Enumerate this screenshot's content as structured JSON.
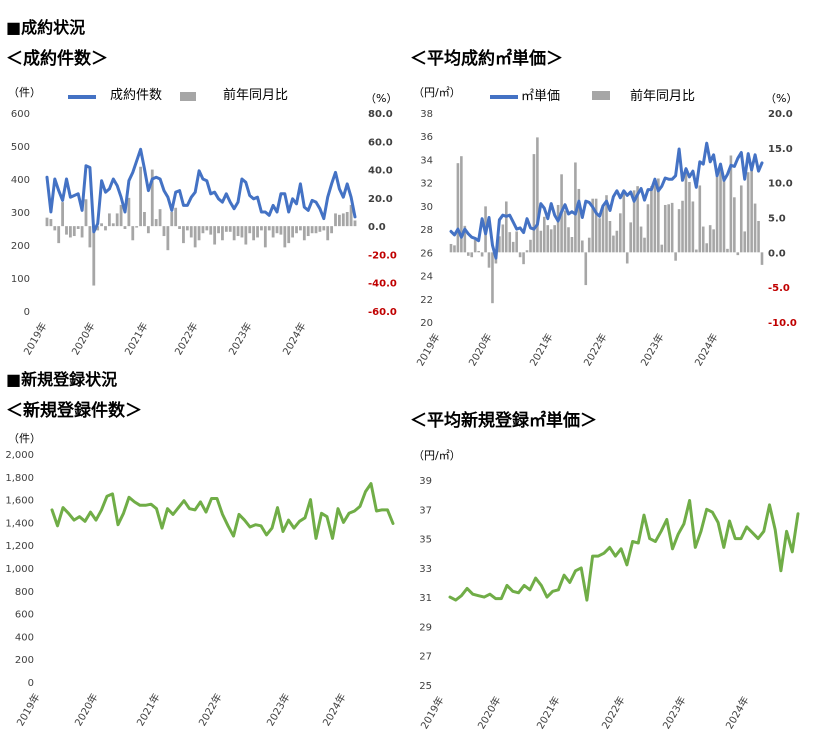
{
  "sections": {
    "contracts": "■成約状況",
    "listings": "■新規登録状況"
  },
  "chart_data": [
    {
      "id": "contract-count",
      "type": "bar+line",
      "title": "＜成約件数＞",
      "ylabel_left": "（件）",
      "ylabel_right": "（%）",
      "legend": [
        "成約件数",
        "前年同月比"
      ],
      "legend_placement": "top",
      "x_tick_labels": [
        "2019年",
        "2020年",
        "2021年",
        "2022年",
        "2023年",
        "2024年"
      ],
      "yticks_left": [
        "0",
        "100",
        "200",
        "300",
        "400",
        "500",
        "600"
      ],
      "yticks_right": [
        "-60.0",
        "-40.0",
        "-20.0",
        "0.0",
        "20.0",
        "40.0",
        "60.0",
        "80.0"
      ],
      "ylim_left": [
        0,
        600
      ],
      "ylim_right": [
        -60,
        80
      ],
      "line_color": "#4472C4",
      "bar_color": "#A6A6A6",
      "negative_tick_color": "#C00000",
      "line_series": {
        "name": "成約件数",
        "values": [
          405,
          300,
          400,
          365,
          335,
          400,
          345,
          350,
          355,
          305,
          440,
          435,
          240,
          265,
          395,
          360,
          370,
          400,
          380,
          345,
          300,
          395,
          420,
          455,
          490,
          430,
          365,
          400,
          405,
          400,
          365,
          345,
          305,
          360,
          365,
          320,
          320,
          345,
          360,
          425,
          400,
          395,
          355,
          360,
          340,
          330,
          355,
          330,
          310,
          330,
          400,
          390,
          350,
          340,
          345,
          300,
          300,
          290,
          320,
          300,
          355,
          355,
          300,
          340,
          325,
          385,
          315,
          305,
          335,
          330,
          310,
          280,
          345,
          385,
          420,
          370,
          345,
          385,
          345,
          285
        ]
      },
      "bar_series": {
        "name": "前年同月比",
        "values": [
          6,
          5,
          -3,
          -12,
          17,
          -6,
          -8,
          -7,
          -2,
          -8,
          19,
          -15,
          -42,
          -3,
          2,
          -3,
          9,
          2,
          9,
          15,
          -2,
          20,
          -10,
          -1,
          42,
          10,
          -5,
          40,
          5,
          12,
          -7,
          -17,
          10,
          13,
          -2,
          -12,
          -3,
          -8,
          -15,
          -10,
          -5,
          -3,
          -6,
          -13,
          -5,
          -10,
          -4,
          -4,
          -10,
          -7,
          -8,
          -13,
          -5,
          -10,
          -8,
          -3,
          -15,
          -3,
          -8,
          -5,
          -6,
          -15,
          -12,
          -8,
          -5,
          -3,
          -10,
          -7,
          -5,
          -5,
          -4,
          -3,
          -10,
          -5,
          9,
          8,
          9,
          10,
          15,
          4
        ]
      }
    },
    {
      "id": "contract-price",
      "type": "bar+line",
      "title": "＜平均成約㎡単価＞",
      "ylabel_left": "（円/㎡）",
      "ylabel_right": "（%）",
      "legend": [
        "㎡単価",
        "前年同月比"
      ],
      "legend_placement": "top",
      "x_tick_labels": [
        "2019年",
        "2020年",
        "2021年",
        "2022年",
        "2023年",
        "2024年"
      ],
      "yticks_left": [
        "20",
        "22",
        "24",
        "26",
        "28",
        "30",
        "32",
        "34",
        "36",
        "38"
      ],
      "yticks_right": [
        "-10.0",
        "-5.0",
        "0.0",
        "5.0",
        "10.0",
        "15.0",
        "20.0"
      ],
      "ylim_left": [
        20,
        38
      ],
      "ylim_right": [
        -10,
        20
      ],
      "line_color": "#4472C4",
      "bar_color": "#A6A6A6",
      "negative_tick_color": "#C00000",
      "line_series": {
        "name": "㎡単価",
        "values": [
          27.8,
          27.5,
          28.0,
          27.3,
          28.0,
          27.6,
          27.3,
          27.2,
          27.0,
          28.9,
          27.6,
          29.0,
          26.6,
          25.5,
          28.8,
          29.2,
          29.1,
          29.2,
          28.6,
          28.0,
          28.1,
          27.7,
          28.9,
          28.1,
          28.0,
          28.4,
          30.2,
          29.8,
          28.9,
          30.2,
          29.2,
          28.7,
          29.5,
          30.1,
          29.3,
          29.5,
          29.3,
          30.4,
          29.0,
          30.4,
          30.3,
          29.9,
          29.4,
          29.1,
          30.0,
          30.4,
          29.6,
          30.8,
          31.3,
          30.7,
          31.3,
          30.9,
          31.2,
          30.4,
          31.0,
          31.5,
          30.5,
          31.4,
          31.4,
          32.3,
          31.3,
          31.7,
          32.4,
          32.3,
          32.3,
          32.6,
          34.9,
          32.2,
          33.2,
          32.5,
          33.0,
          31.6,
          33.8,
          33.6,
          35.4,
          33.8,
          34.4,
          32.6,
          33.6,
          32.2,
          32.7,
          33.5,
          33.4,
          34.1,
          34.6,
          32.3,
          34.5,
          33.1,
          34.4,
          33.0,
          33.7
        ]
      },
      "bar_series": {
        "name": "前年同月比",
        "values": [
          1.2,
          1.0,
          12.8,
          13.8,
          3.8,
          -0.5,
          -0.7,
          1.8,
          0.2,
          -0.6,
          6.6,
          -2.2,
          -7.3,
          -1.6,
          2.3,
          4.0,
          7.3,
          2.9,
          1.5,
          3.0,
          -0.7,
          -1.7,
          0.3,
          1.8,
          14.1,
          16.5,
          3.1,
          5.1,
          3.9,
          3.3,
          3.9,
          6.8,
          11.2,
          6.0,
          3.6,
          2.2,
          12.9,
          9.1,
          1.7,
          -4.7,
          2.1,
          7.7,
          7.7,
          4.9,
          6.8,
          8.2,
          4.5,
          2.4,
          3.1,
          5.6,
          8.5,
          -1.6,
          4.3,
          8.9,
          9.5,
          3.7,
          2.1,
          6.9,
          9.5,
          9.9,
          10.6,
          1.1,
          6.8,
          6.9,
          7.1,
          -1.2,
          6.2,
          7.4,
          11.3,
          10.1,
          7.3,
          0.4,
          9.6,
          3.7,
          1.3,
          3.9,
          3.3,
          11.1,
          12.7,
          10.4,
          0.5,
          13.9,
          7.9,
          -0.4,
          9.6,
          3.0,
          11.5,
          12.0,
          7.0,
          4.5,
          -1.8
        ]
      }
    },
    {
      "id": "listing-count",
      "type": "line",
      "title": "＜新規登録件数＞",
      "ylabel": "（件）",
      "x_tick_labels": [
        "2019年",
        "2020年",
        "2021年",
        "2022年",
        "2023年",
        "2024年"
      ],
      "yticks": [
        "0",
        "200",
        "400",
        "600",
        "800",
        "1,000",
        "1,200",
        "1,400",
        "1,600",
        "1,800",
        "2,000"
      ],
      "ylim": [
        0,
        2000
      ],
      "line_color": "#70AD47",
      "series": {
        "name": "新規登録件数",
        "values": [
          1510,
          1370,
          1530,
          1480,
          1420,
          1450,
          1410,
          1490,
          1420,
          1510,
          1630,
          1650,
          1380,
          1480,
          1620,
          1580,
          1550,
          1550,
          1560,
          1520,
          1350,
          1520,
          1470,
          1530,
          1590,
          1520,
          1510,
          1580,
          1490,
          1610,
          1610,
          1470,
          1370,
          1280,
          1470,
          1420,
          1360,
          1380,
          1370,
          1290,
          1350,
          1530,
          1320,
          1420,
          1350,
          1410,
          1440,
          1600,
          1260,
          1480,
          1450,
          1260,
          1520,
          1400,
          1480,
          1500,
          1540,
          1670,
          1740,
          1500,
          1510,
          1510,
          1390
        ]
      }
    },
    {
      "id": "listing-price",
      "type": "line",
      "title": "＜平均新規登録㎡単価＞",
      "ylabel": "（円/㎡）",
      "x_tick_labels": [
        "2019年",
        "2020年",
        "2021年",
        "2022年",
        "2023年",
        "2024年"
      ],
      "yticks": [
        "25",
        "27",
        "29",
        "31",
        "33",
        "35",
        "37",
        "39"
      ],
      "ylim": [
        25,
        39
      ],
      "line_color": "#70AD47",
      "series": {
        "name": "新規登録㎡単価",
        "values": [
          31.0,
          30.8,
          31.1,
          31.6,
          31.2,
          31.1,
          31.0,
          31.2,
          30.9,
          30.9,
          31.8,
          31.4,
          31.3,
          31.8,
          31.5,
          32.3,
          31.8,
          31.0,
          31.4,
          31.5,
          32.5,
          32.0,
          32.8,
          33.0,
          30.8,
          33.8,
          33.8,
          34.0,
          34.4,
          33.8,
          34.3,
          33.2,
          34.8,
          34.7,
          36.6,
          35.0,
          34.8,
          35.5,
          36.3,
          34.3,
          35.3,
          36.0,
          37.6,
          34.4,
          35.5,
          37.0,
          36.8,
          36.1,
          34.4,
          36.2,
          35.0,
          35.0,
          35.8,
          35.4,
          35.0,
          35.5,
          37.3,
          35.6,
          32.8,
          35.5,
          34.1,
          36.7
        ]
      }
    }
  ]
}
